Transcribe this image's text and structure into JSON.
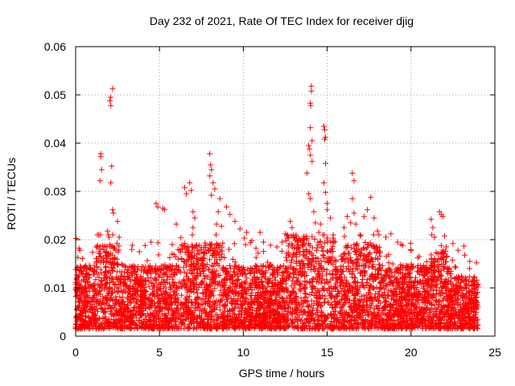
{
  "chart_data": {
    "type": "scatter",
    "title": "Day 232 of 2021, Rate Of TEC Index for receiver djig",
    "xlabel": "GPS time / hours",
    "ylabel": "ROTI / TECUs",
    "xlim": [
      0,
      25
    ],
    "ylim": [
      0,
      0.06
    ],
    "xticks": [
      0,
      5,
      10,
      15,
      20,
      25
    ],
    "xtick_labels": [
      "0",
      "5",
      "10",
      "15",
      "20",
      "25"
    ],
    "yticks": [
      0,
      0.01,
      0.02,
      0.03,
      0.04,
      0.05,
      0.06
    ],
    "ytick_labels": [
      "0",
      "0.01",
      "0.02",
      "0.03",
      "0.04",
      "0.05",
      "0.06"
    ],
    "grid": true,
    "marker": "+",
    "marker_color": "#ff0000",
    "series": [
      {
        "name": "ROTI",
        "points": [
          [
            0.2,
            0.0182
          ],
          [
            0.25,
            0.0178
          ],
          [
            1.5,
            0.0378
          ],
          [
            1.5,
            0.0372
          ],
          [
            1.55,
            0.0345
          ],
          [
            1.45,
            0.0322
          ],
          [
            1.9,
            0.0218
          ],
          [
            2.0,
            0.0205
          ],
          [
            2.05,
            0.0488
          ],
          [
            2.08,
            0.0495
          ],
          [
            2.1,
            0.0478
          ],
          [
            2.2,
            0.0513
          ],
          [
            2.15,
            0.0352
          ],
          [
            2.1,
            0.0318
          ],
          [
            2.2,
            0.0262
          ],
          [
            2.25,
            0.0255
          ],
          [
            2.5,
            0.0238
          ],
          [
            2.6,
            0.0205
          ],
          [
            3.8,
            0.0175
          ],
          [
            4.5,
            0.0195
          ],
          [
            4.8,
            0.0275
          ],
          [
            4.9,
            0.0268
          ],
          [
            5.2,
            0.0265
          ],
          [
            5.3,
            0.0262
          ],
          [
            6.0,
            0.0232
          ],
          [
            6.5,
            0.0308
          ],
          [
            6.6,
            0.0295
          ],
          [
            6.8,
            0.0318
          ],
          [
            6.9,
            0.0302
          ],
          [
            7.0,
            0.0258
          ],
          [
            7.1,
            0.0245
          ],
          [
            7.0,
            0.0225
          ],
          [
            8.0,
            0.0378
          ],
          [
            8.05,
            0.0355
          ],
          [
            8.1,
            0.0345
          ],
          [
            8.0,
            0.0332
          ],
          [
            8.2,
            0.0318
          ],
          [
            8.1,
            0.0292
          ],
          [
            8.3,
            0.0305
          ],
          [
            8.5,
            0.0258
          ],
          [
            8.6,
            0.0285
          ],
          [
            8.4,
            0.0232
          ],
          [
            8.7,
            0.0228
          ],
          [
            9.0,
            0.0268
          ],
          [
            9.2,
            0.0252
          ],
          [
            9.5,
            0.0238
          ],
          [
            9.8,
            0.0222
          ],
          [
            10.2,
            0.0215
          ],
          [
            10.5,
            0.0198
          ],
          [
            11.0,
            0.0215
          ],
          [
            11.2,
            0.0195
          ],
          [
            12.0,
            0.0185
          ],
          [
            12.5,
            0.0212
          ],
          [
            12.8,
            0.0238
          ],
          [
            12.9,
            0.0225
          ],
          [
            13.0,
            0.0205
          ],
          [
            13.2,
            0.0195
          ],
          [
            13.8,
            0.0338
          ],
          [
            13.9,
            0.0395
          ],
          [
            13.95,
            0.0388
          ],
          [
            14.0,
            0.0432
          ],
          [
            14.0,
            0.0483
          ],
          [
            14.02,
            0.0478
          ],
          [
            14.05,
            0.0518
          ],
          [
            14.06,
            0.0508
          ],
          [
            14.1,
            0.0405
          ],
          [
            14.0,
            0.0375
          ],
          [
            14.1,
            0.0362
          ],
          [
            13.9,
            0.0295
          ],
          [
            14.0,
            0.0285
          ],
          [
            14.2,
            0.0258
          ],
          [
            14.3,
            0.0235
          ],
          [
            14.5,
            0.0215
          ],
          [
            14.6,
            0.0232
          ],
          [
            14.8,
            0.0435
          ],
          [
            14.85,
            0.0428
          ],
          [
            14.9,
            0.0412
          ],
          [
            14.85,
            0.0408
          ],
          [
            14.9,
            0.0358
          ],
          [
            14.8,
            0.0318
          ],
          [
            14.9,
            0.0298
          ],
          [
            15.0,
            0.0275
          ],
          [
            15.0,
            0.0262
          ],
          [
            15.2,
            0.0245
          ],
          [
            16.0,
            0.0225
          ],
          [
            16.2,
            0.0248
          ],
          [
            16.4,
            0.0235
          ],
          [
            16.5,
            0.0338
          ],
          [
            16.6,
            0.0322
          ],
          [
            16.5,
            0.0285
          ],
          [
            16.6,
            0.0255
          ],
          [
            16.7,
            0.0232
          ],
          [
            17.0,
            0.0208
          ],
          [
            17.2,
            0.0248
          ],
          [
            17.4,
            0.0262
          ],
          [
            17.6,
            0.0288
          ],
          [
            17.8,
            0.0245
          ],
          [
            18.0,
            0.0218
          ],
          [
            18.5,
            0.0205
          ],
          [
            18.8,
            0.0212
          ],
          [
            19.2,
            0.0195
          ],
          [
            19.5,
            0.0188
          ],
          [
            20.0,
            0.0178
          ],
          [
            20.4,
            0.0162
          ],
          [
            21.2,
            0.0242
          ],
          [
            21.3,
            0.0225
          ],
          [
            21.4,
            0.0205
          ],
          [
            21.7,
            0.0258
          ],
          [
            21.8,
            0.0252
          ],
          [
            21.9,
            0.0248
          ],
          [
            22.0,
            0.0208
          ],
          [
            22.1,
            0.0185
          ],
          [
            22.5,
            0.0192
          ],
          [
            22.8,
            0.0178
          ],
          [
            23.2,
            0.0168
          ],
          [
            23.5,
            0.0155
          ],
          [
            23.9,
            0.0152
          ]
        ]
      }
    ]
  }
}
